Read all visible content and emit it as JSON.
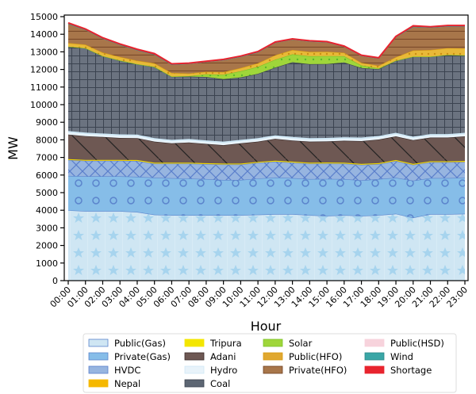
{
  "chart_data": {
    "type": "area",
    "stacked": true,
    "title": "",
    "xlabel": "Hour",
    "ylabel": "MW",
    "ylim": [
      0,
      15000
    ],
    "yticks": [
      0,
      1000,
      2000,
      3000,
      4000,
      5000,
      6000,
      7000,
      8000,
      9000,
      10000,
      11000,
      12000,
      13000,
      14000,
      15000
    ],
    "grid": false,
    "legend_position": "bottom",
    "categories": [
      "00:00",
      "01:00",
      "02:00",
      "03:00",
      "04:00",
      "05:00",
      "06:00",
      "07:00",
      "08:00",
      "09:00",
      "10:00",
      "11:00",
      "12:00",
      "13:00",
      "14:00",
      "15:00",
      "16:00",
      "17:00",
      "18:00",
      "19:00",
      "20:00",
      "21:00",
      "22:00",
      "23:00"
    ],
    "series": [
      {
        "name": "Public(Gas)",
        "color": "#cfe6f3",
        "values": [
          4000,
          3950,
          3950,
          3950,
          3900,
          3750,
          3720,
          3720,
          3720,
          3720,
          3720,
          3750,
          3780,
          3780,
          3720,
          3680,
          3720,
          3680,
          3720,
          3800,
          3580,
          3780,
          3780,
          3800
        ]
      },
      {
        "name": "Private(Gas)",
        "color": "#86bde8",
        "values": [
          1950,
          1980,
          1980,
          1980,
          2000,
          2100,
          2100,
          2080,
          2050,
          2000,
          2000,
          2050,
          2080,
          2050,
          2050,
          2100,
          2050,
          2020,
          2050,
          2050,
          2100,
          2050,
          2050,
          2050
        ]
      },
      {
        "name": "HVDC",
        "color": "#97b5e0",
        "values": [
          900,
          880,
          880,
          880,
          900,
          800,
          830,
          850,
          850,
          880,
          880,
          900,
          900,
          880,
          880,
          880,
          880,
          880,
          850,
          950,
          900,
          900,
          900,
          900
        ]
      },
      {
        "name": "Nepal",
        "color": "#f5b800",
        "values": [
          40,
          40,
          40,
          40,
          40,
          40,
          40,
          40,
          40,
          40,
          40,
          40,
          40,
          40,
          40,
          40,
          40,
          40,
          40,
          40,
          40,
          40,
          40,
          40
        ]
      },
      {
        "name": "Tripura",
        "color": "#f3e600",
        "values": [
          10,
          10,
          10,
          10,
          10,
          10,
          10,
          10,
          10,
          10,
          10,
          10,
          10,
          10,
          10,
          10,
          10,
          10,
          10,
          10,
          10,
          10,
          10,
          10
        ]
      },
      {
        "name": "Adani",
        "color": "#6e5853",
        "values": [
          1400,
          1350,
          1300,
          1250,
          1250,
          1200,
          1100,
          1150,
          1100,
          1050,
          1150,
          1150,
          1250,
          1200,
          1200,
          1200,
          1250,
          1300,
          1350,
          1350,
          1350,
          1350,
          1350,
          1400
        ]
      },
      {
        "name": "Hydro",
        "color": "#e8f3fa",
        "values": [
          200,
          200,
          200,
          200,
          200,
          200,
          200,
          200,
          200,
          200,
          200,
          200,
          200,
          200,
          200,
          200,
          200,
          200,
          200,
          200,
          200,
          200,
          200,
          200
        ]
      },
      {
        "name": "Coal",
        "color": "#5d6673",
        "values": [
          4800,
          4800,
          4400,
          4200,
          4000,
          4050,
          3600,
          3550,
          3600,
          3550,
          3550,
          3650,
          3850,
          4250,
          4200,
          4200,
          4250,
          3950,
          3800,
          4100,
          4550,
          4400,
          4500,
          4400
        ]
      },
      {
        "name": "Solar",
        "color": "#9fd63a",
        "values": [
          0,
          0,
          0,
          0,
          0,
          0,
          0,
          20,
          150,
          250,
          350,
          400,
          450,
          450,
          450,
          450,
          350,
          150,
          40,
          0,
          0,
          0,
          0,
          0
        ]
      },
      {
        "name": "Public(HFO)",
        "color": "#e0a830",
        "values": [
          200,
          200,
          200,
          200,
          200,
          200,
          200,
          150,
          150,
          150,
          180,
          200,
          250,
          250,
          250,
          250,
          200,
          150,
          150,
          200,
          350,
          380,
          380,
          400
        ]
      },
      {
        "name": "Private(HFO)",
        "color": "#a8764a",
        "values": [
          1100,
          850,
          800,
          700,
          600,
          500,
          480,
          560,
          570,
          690,
          650,
          630,
          720,
          600,
          600,
          540,
          350,
          400,
          420,
          1150,
          1350,
          1280,
          1250,
          1250
        ]
      },
      {
        "name": "Public(HSD)",
        "color": "#f7d3dc",
        "values": [
          0,
          0,
          0,
          0,
          0,
          0,
          0,
          0,
          0,
          0,
          0,
          0,
          0,
          0,
          0,
          0,
          0,
          0,
          0,
          0,
          0,
          0,
          0,
          0
        ]
      },
      {
        "name": "Wind",
        "color": "#3aa6a6",
        "values": [
          0,
          0,
          0,
          0,
          0,
          0,
          0,
          0,
          0,
          0,
          0,
          0,
          0,
          0,
          0,
          0,
          0,
          0,
          0,
          0,
          0,
          0,
          0,
          0
        ]
      },
      {
        "name": "Shortage",
        "color": "#e8242e",
        "values": [
          50,
          40,
          40,
          40,
          50,
          50,
          40,
          30,
          30,
          30,
          30,
          40,
          30,
          30,
          30,
          30,
          30,
          30,
          30,
          30,
          50,
          40,
          40,
          50
        ]
      }
    ],
    "legend": [
      "Public(Gas)",
      "Private(Gas)",
      "HVDC",
      "Nepal",
      "Tripura",
      "Adani",
      "Hydro",
      "Coal",
      "Solar",
      "Public(HFO)",
      "Private(HFO)",
      "Public(HSD)",
      "Wind",
      "Shortage"
    ]
  }
}
